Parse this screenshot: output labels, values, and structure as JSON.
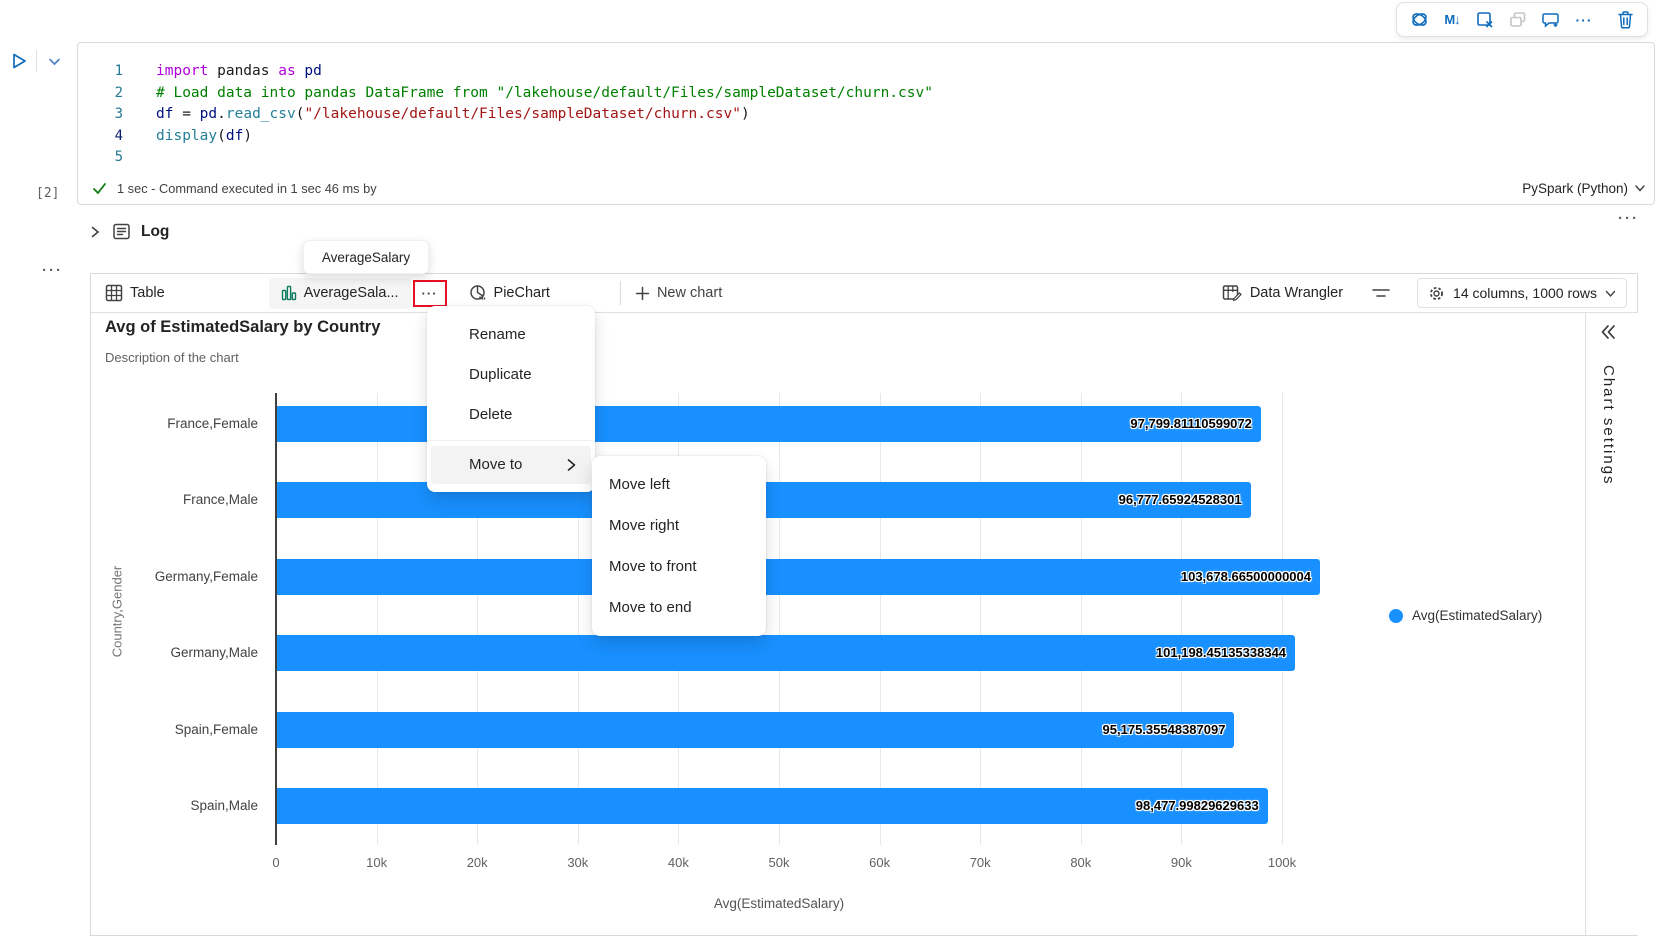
{
  "cell_toolbar": {
    "icons": [
      "copilot-icon",
      "markdown-convert-icon",
      "clear-cell-icon",
      "copy-icon",
      "add-comment-icon",
      "more-icon",
      "delete-cell-icon"
    ],
    "markdown_glyph": "M↓",
    "more_glyph": "···"
  },
  "code_cell": {
    "line_numbers": [
      "1",
      "2",
      "3",
      "4",
      "5"
    ],
    "lines": [
      [
        {
          "t": "import",
          "c": "kw"
        },
        {
          "t": " pandas ",
          "c": "pl"
        },
        {
          "t": "as",
          "c": "kw"
        },
        {
          "t": " pd",
          "c": "var"
        }
      ],
      [
        {
          "t": "# Load data into pandas DataFrame from \"/lakehouse/default/Files/sampleDataset/churn.csv\"",
          "c": "com"
        }
      ],
      [
        {
          "t": "df",
          "c": "var"
        },
        {
          "t": " = ",
          "c": "pl"
        },
        {
          "t": "pd",
          "c": "var"
        },
        {
          "t": ".",
          "c": "pl"
        },
        {
          "t": "read_csv",
          "c": "fn"
        },
        {
          "t": "(",
          "c": "pl"
        },
        {
          "t": "\"/lakehouse/default/Files/sampleDataset/churn.csv\"",
          "c": "str"
        },
        {
          "t": ")",
          "c": "pl"
        }
      ],
      [
        {
          "t": "display",
          "c": "fn"
        },
        {
          "t": "(",
          "c": "pl"
        },
        {
          "t": "df",
          "c": "var"
        },
        {
          "t": ")",
          "c": "pl"
        }
      ],
      []
    ],
    "execution_count": "[2]",
    "status_text": "1 sec - Command executed in 1 sec 46 ms by",
    "kernel": "PySpark (Python)"
  },
  "log_section": {
    "label": "Log"
  },
  "tooltip": {
    "text": "AverageSalary"
  },
  "results_panel": {
    "tabs": [
      {
        "label": "Table"
      },
      {
        "label": "AverageSala..."
      },
      {
        "label": "PieChart"
      }
    ],
    "more_glyph": "···",
    "new_chart_label": "New chart",
    "data_wrangler_label": "Data Wrangler",
    "summary": "14 columns, 1000 rows"
  },
  "context_menu": {
    "items": [
      {
        "label": "Rename"
      },
      {
        "label": "Duplicate"
      },
      {
        "label": "Delete"
      },
      {
        "label": "Move to",
        "has_submenu": true,
        "highlighted": true
      }
    ],
    "submenu": {
      "items": [
        {
          "label": "Move left"
        },
        {
          "label": "Move right"
        },
        {
          "label": "Move to front"
        },
        {
          "label": "Move to end"
        }
      ]
    }
  },
  "chart_data": {
    "type": "bar",
    "orientation": "horizontal",
    "title": "Avg of EstimatedSalary by Country",
    "subtitle": "Description of the chart",
    "categories": [
      "France,Female",
      "France,Male",
      "Germany,Female",
      "Germany,Male",
      "Spain,Female",
      "Spain,Male"
    ],
    "values": [
      97799.81110599072,
      96777.65924528301,
      103678.66500000004,
      101198.45135338344,
      95175.35548387097,
      98477.99829629633
    ],
    "value_labels": [
      "97,799.81110599072",
      "96,777.65924528301",
      "103,678.66500000004",
      "101,198.45135338344",
      "95,175.35548387097",
      "98,477.99829629633"
    ],
    "xlabel": "Avg(EstimatedSalary)",
    "ylabel": "Country,Gender",
    "x_ticks": [
      "0",
      "10k",
      "20k",
      "30k",
      "40k",
      "50k",
      "60k",
      "70k",
      "80k",
      "90k",
      "100k"
    ],
    "xlim": [
      0,
      100000
    ],
    "grid": true,
    "bar_color": "#1890ff",
    "legend_position": "right",
    "legend": [
      {
        "label": "Avg(EstimatedSalary)",
        "color": "#1890ff"
      }
    ]
  },
  "right_panel": {
    "title": "Chart settings"
  },
  "colors": {
    "accent_blue": "#0f6cbd",
    "bar_blue": "#1890ff",
    "icon_green": "#0e7a60",
    "highlight_red": "#e81123",
    "check_green": "#107c10"
  }
}
